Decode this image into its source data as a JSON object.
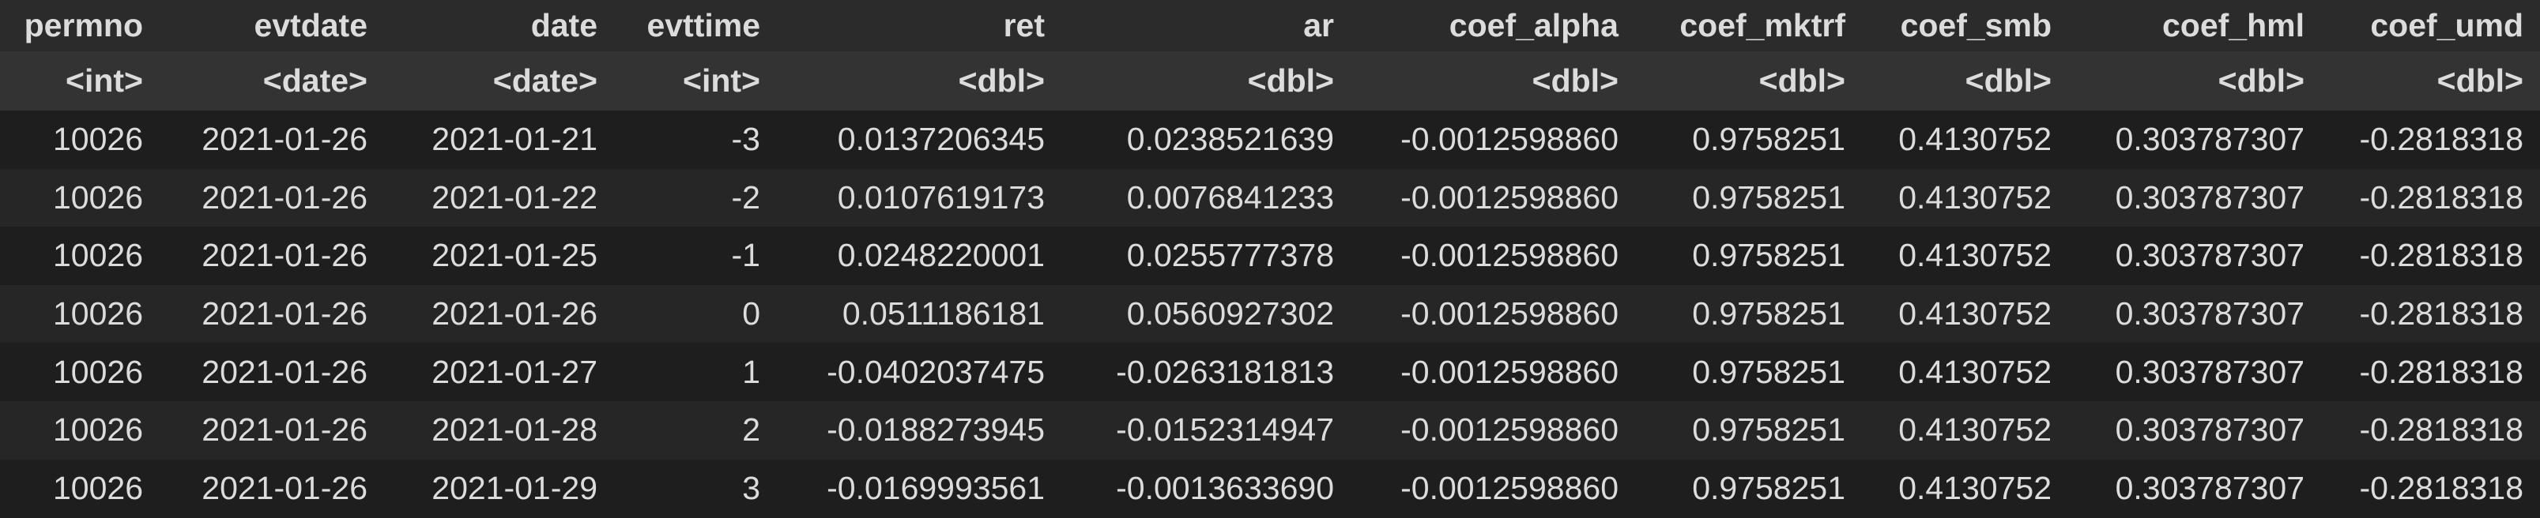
{
  "columns": [
    {
      "name": "permno",
      "type": "<int>"
    },
    {
      "name": "evtdate",
      "type": "<date>"
    },
    {
      "name": "date",
      "type": "<date>"
    },
    {
      "name": "evttime",
      "type": "<int>"
    },
    {
      "name": "ret",
      "type": "<dbl>"
    },
    {
      "name": "ar",
      "type": "<dbl>"
    },
    {
      "name": "coef_alpha",
      "type": "<dbl>"
    },
    {
      "name": "coef_mktrf",
      "type": "<dbl>"
    },
    {
      "name": "coef_smb",
      "type": "<dbl>"
    },
    {
      "name": "coef_hml",
      "type": "<dbl>"
    },
    {
      "name": "coef_umd",
      "type": "<dbl>"
    }
  ],
  "rows": [
    [
      "10026",
      "2021-01-26",
      "2021-01-21",
      "-3",
      "0.0137206345",
      "0.0238521639",
      "-0.0012598860",
      "0.9758251",
      "0.4130752",
      "0.303787307",
      "-0.2818318"
    ],
    [
      "10026",
      "2021-01-26",
      "2021-01-22",
      "-2",
      "0.0107619173",
      "0.0076841233",
      "-0.0012598860",
      "0.9758251",
      "0.4130752",
      "0.303787307",
      "-0.2818318"
    ],
    [
      "10026",
      "2021-01-26",
      "2021-01-25",
      "-1",
      "0.0248220001",
      "0.0255777378",
      "-0.0012598860",
      "0.9758251",
      "0.4130752",
      "0.303787307",
      "-0.2818318"
    ],
    [
      "10026",
      "2021-01-26",
      "2021-01-26",
      "0",
      "0.0511186181",
      "0.0560927302",
      "-0.0012598860",
      "0.9758251",
      "0.4130752",
      "0.303787307",
      "-0.2818318"
    ],
    [
      "10026",
      "2021-01-26",
      "2021-01-27",
      "1",
      "-0.0402037475",
      "-0.0263181813",
      "-0.0012598860",
      "0.9758251",
      "0.4130752",
      "0.303787307",
      "-0.2818318"
    ],
    [
      "10026",
      "2021-01-26",
      "2021-01-28",
      "2",
      "-0.0188273945",
      "-0.0152314947",
      "-0.0012598860",
      "0.9758251",
      "0.4130752",
      "0.303787307",
      "-0.2818318"
    ],
    [
      "10026",
      "2021-01-26",
      "2021-01-29",
      "3",
      "-0.0169993561",
      "-0.0013633690",
      "-0.0012598860",
      "0.9758251",
      "0.4130752",
      "0.303787307",
      "-0.2818318"
    ]
  ]
}
